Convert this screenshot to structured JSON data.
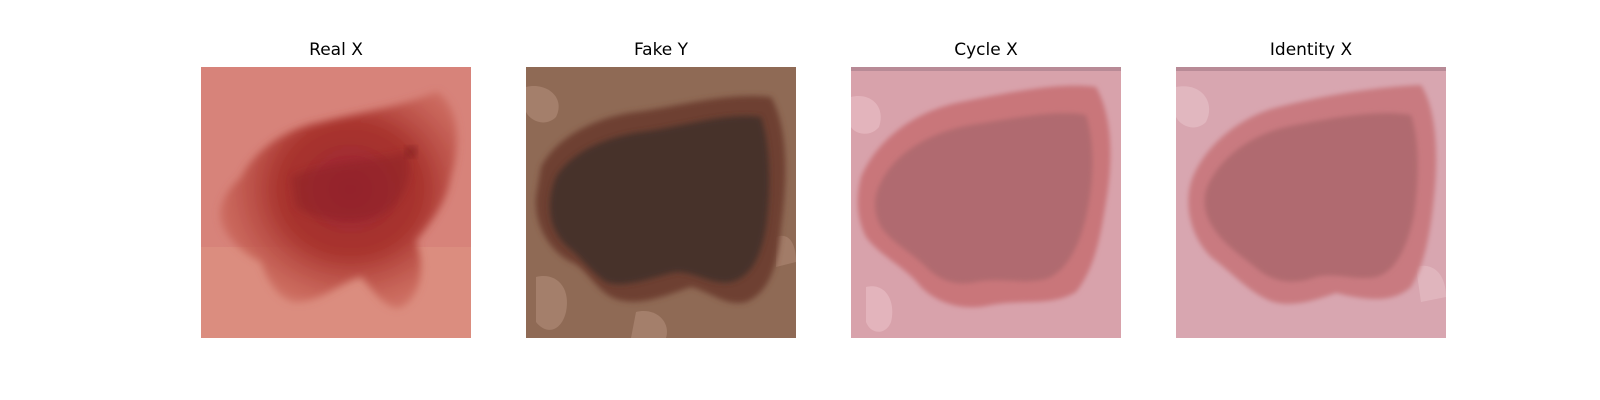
{
  "figure": {
    "panels": [
      {
        "title": "Real X",
        "image": "dermoscopic skin lesion, reddish-brown on pink skin"
      },
      {
        "title": "Fake Y",
        "image": "generated lesion, dark brown on tan background"
      },
      {
        "title": "Cycle X",
        "image": "reconstructed lesion, muted rose on pale pink"
      },
      {
        "title": "Identity X",
        "image": "identity-mapped lesion, muted rose on pale pink"
      }
    ]
  },
  "colors": {
    "real_bg": "#d7837a",
    "real_lesion": "#a9352f",
    "fake_bg": "#8f6a55",
    "fake_lesion": "#46322a",
    "cycle_bg": "#d8a2ab",
    "cycle_lesion": "#b06a70",
    "identity_bg": "#d8a6b0",
    "identity_lesion": "#b06a70"
  }
}
